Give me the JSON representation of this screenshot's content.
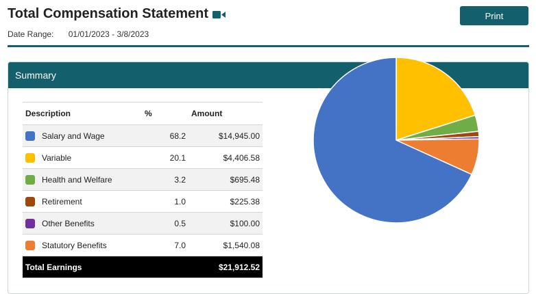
{
  "header": {
    "title": "Total Compensation Statement",
    "print_label": "Print",
    "date_range_label": "Date Range:",
    "date_range_value": "01/01/2023 - 3/8/2023"
  },
  "summary": {
    "title": "Summary",
    "columns": {
      "description": "Description",
      "percent": "%",
      "amount": "Amount"
    },
    "rows": [
      {
        "description": "Salary and Wage",
        "percent": "68.2",
        "amount": "$14,945.00",
        "color": "#4472c4"
      },
      {
        "description": "Variable",
        "percent": "20.1",
        "amount": "$4,406.58",
        "color": "#ffc000"
      },
      {
        "description": "Health and Welfare",
        "percent": "3.2",
        "amount": "$695.48",
        "color": "#70ad47"
      },
      {
        "description": "Retirement",
        "percent": "1.0",
        "amount": "$225.38",
        "color": "#9e480e"
      },
      {
        "description": "Other Benefits",
        "percent": "0.5",
        "amount": "$100.00",
        "color": "#7030a0"
      },
      {
        "description": "Statutory Benefits",
        "percent": "7.0",
        "amount": "$1,540.08",
        "color": "#ed7d31"
      }
    ],
    "total": {
      "label": "Total Earnings",
      "amount": "$21,912.52"
    }
  },
  "chart_data": {
    "type": "pie",
    "categories": [
      "Salary and Wage",
      "Variable",
      "Health and Welfare",
      "Retirement",
      "Other Benefits",
      "Statutory Benefits"
    ],
    "values": [
      14945.0,
      4406.58,
      695.48,
      225.38,
      100.0,
      1540.08
    ],
    "colors": [
      "#4472c4",
      "#ffc000",
      "#70ad47",
      "#9e480e",
      "#7030a0",
      "#ed7d31"
    ]
  }
}
